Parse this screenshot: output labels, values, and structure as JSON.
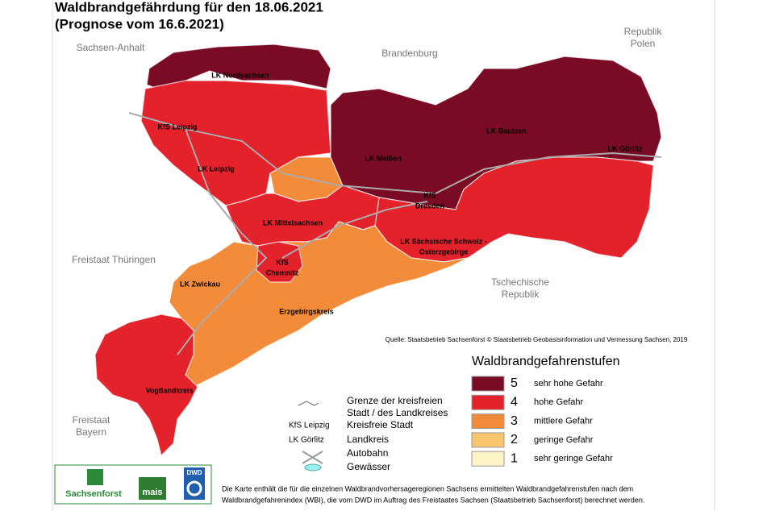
{
  "header": {
    "title": "Waldbrandgefährdung für den 18.06.2021",
    "subtitle": "(Prognose vom 16.6.2021)"
  },
  "neighbors": [
    [
      "Sachsen-Anhalt"
    ],
    [
      "Brandenburg"
    ],
    [
      "Republik",
      "Polen"
    ],
    [
      "Freistaat Thüringen"
    ],
    [
      "Tschechische",
      "Republik"
    ],
    [
      "Freistaat",
      "Bayern"
    ]
  ],
  "area_levels": [
    5,
    4,
    3,
    5,
    4,
    4,
    3,
    4,
    4
  ],
  "region_labels": [
    [
      "LK Nordsachsen"
    ],
    [
      "KfS Leipzig"
    ],
    [
      "LK Leipzig"
    ],
    [
      "LK Meißen"
    ],
    [
      "LK Bautzen"
    ],
    [
      "LK Görlitz"
    ],
    [
      "KfS",
      "Dresden"
    ],
    [
      "LK Mittelsachsen"
    ],
    [
      "LK Sächsische Schweiz -",
      "Osterzgebirge"
    ],
    [
      "KfS",
      "Chemnitz"
    ],
    [
      "LK Zwickau"
    ],
    [
      "Erzgebirgskreis"
    ],
    [
      "Vogtlandkreis"
    ]
  ],
  "source": "Quelle: Staatsbetrieb Sachsenforst © Staatsbetrieb Geobasisinformation und Vermessung Sachsen, 2019",
  "legend": {
    "title": "Waldbrandgefahrenstufen",
    "items": [
      {
        "level": 5,
        "label": "sehr hohe Gefahr",
        "color": "#7a0b24"
      },
      {
        "level": 4,
        "label": "hohe Gefahr",
        "color": "#e3222b"
      },
      {
        "level": 3,
        "label": "mittlere Gefahr",
        "color": "#f28c3b"
      },
      {
        "level": 2,
        "label": "geringe Gefahr",
        "color": "#f9c56c"
      },
      {
        "level": 1,
        "label": "sehr geringe Gefahr",
        "color": "#fdf3c4"
      }
    ]
  },
  "key": {
    "border": [
      "Grenze der kreisfreien",
      "Stadt / des Landkreises"
    ],
    "city_sample": "KfS Leipzig",
    "city": "Kreisfreie Stadt",
    "district_sample": "LK Görlitz",
    "district": "Landkreis",
    "motorway": "Autobahn",
    "water": "Gewässer"
  },
  "logos": [
    "Sachsenforst",
    "mais",
    "DWD"
  ],
  "footnote": [
    "Die Karte enthält die für die einzelnen Waldbrandvorhersageregionen Sachsens ermittelten Waldbrandgefahrenstufen nach dem",
    "Waldbrandgefahrenindex (WBI), die vom DWD im Auftrag des Freistaates Sachsen (Staatsbetrieb Sachsenforst) berechnet werden."
  ]
}
